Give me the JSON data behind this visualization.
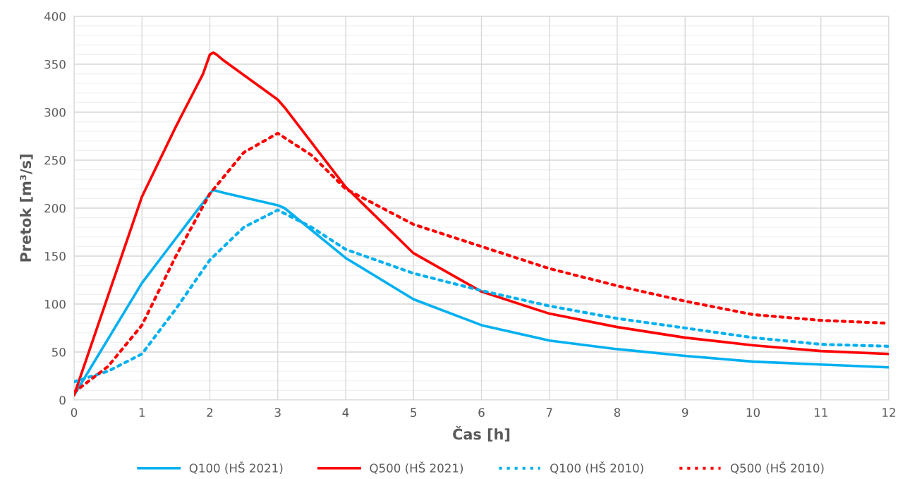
{
  "chart_data": {
    "type": "line",
    "xlabel": "Čas [h]",
    "ylabel": "Pretok [m³/s]",
    "xlim": [
      0,
      12
    ],
    "xticks": [
      0,
      1,
      2,
      3,
      4,
      5,
      6,
      7,
      8,
      9,
      10,
      11,
      12
    ],
    "ylim": [
      0,
      400
    ],
    "yticks": [
      0,
      50,
      100,
      150,
      200,
      250,
      300,
      350,
      400
    ],
    "grid": true,
    "legend": "bottom",
    "marker": "none",
    "series": [
      {
        "name": "Q100 (HŠ 2021)",
        "color": "#00b0f0",
        "line_style": "solid",
        "x": [
          0,
          1,
          2,
          2.05,
          2.2,
          3,
          3.1,
          4,
          5,
          6,
          7,
          8,
          9,
          10,
          11,
          12
        ],
        "values": [
          5,
          122,
          215,
          219,
          216,
          203,
          200,
          148,
          105,
          78,
          62,
          53,
          46,
          40,
          37,
          34
        ]
      },
      {
        "name": "Q500 (HŠ 2021)",
        "color": "#ff0000",
        "line_style": "solid",
        "x": [
          0,
          1,
          1.5,
          1.9,
          2.0,
          2.05,
          2.1,
          2.2,
          3,
          3.1,
          4,
          5,
          6,
          7,
          8,
          9,
          10,
          11,
          12
        ],
        "values": [
          5,
          212,
          285,
          340,
          360,
          362,
          360,
          354,
          313,
          305,
          222,
          153,
          113,
          90,
          76,
          65,
          57,
          51,
          48
        ]
      },
      {
        "name": "Q100 (HŠ 2010)",
        "color": "#00b0f0",
        "line_style": "dotted",
        "x": [
          0,
          0.5,
          1,
          1.5,
          2,
          2.5,
          3,
          3.5,
          4,
          5,
          6,
          7,
          8,
          9,
          10,
          11,
          12
        ],
        "values": [
          19,
          30,
          48,
          95,
          146,
          180,
          198,
          180,
          157,
          132,
          114,
          98,
          85,
          75,
          65,
          58,
          56
        ]
      },
      {
        "name": "Q500 (HŠ 2010)",
        "color": "#ff0000",
        "line_style": "dotted",
        "x": [
          0,
          0.5,
          1,
          1.5,
          2,
          2.5,
          3,
          3.5,
          4,
          5,
          6,
          7,
          8,
          9,
          10,
          11,
          12
        ],
        "values": [
          8,
          35,
          78,
          150,
          215,
          258,
          278,
          255,
          220,
          183,
          160,
          137,
          119,
          103,
          89,
          83,
          80
        ]
      }
    ]
  }
}
